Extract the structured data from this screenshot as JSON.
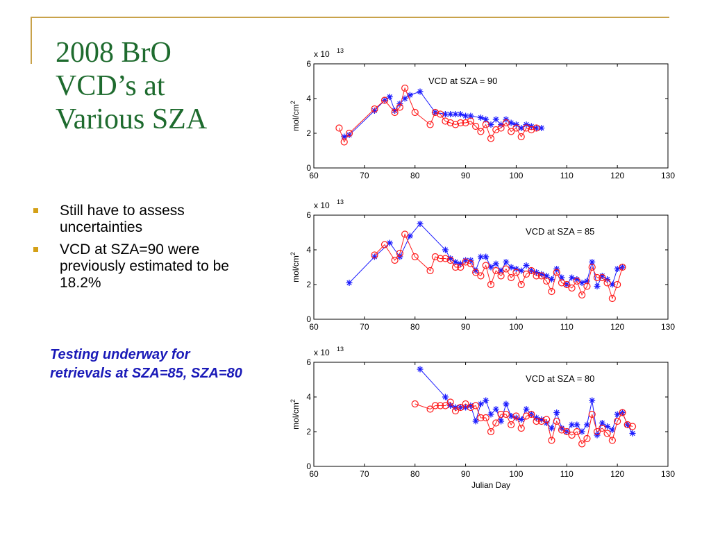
{
  "slide": {
    "title_lines": [
      "2008 BrO",
      "VCD’s at",
      "Various SZA"
    ],
    "bullets": [
      "Still have to assess uncertainties",
      "VCD at SZA=90 were previously estimated to be 18.2%"
    ],
    "note": "Testing underway for retrievals at SZA=85, SZA=80"
  },
  "colors": {
    "accent": "#c8a24a",
    "title": "#1e6b2e",
    "bullet": "#d4a017",
    "note": "#1a1ab8",
    "series_blue": "#1a1aff",
    "series_red": "#ff1a1a"
  },
  "chart_data": [
    {
      "type": "line",
      "title": "VCD at SZA = 90",
      "xlabel": "",
      "ylabel": "mol/cm",
      "ylabel_sup": "2",
      "exponent_label": "x 10",
      "exponent_sup": "13",
      "xlim": [
        60,
        130
      ],
      "ylim": [
        0,
        6
      ],
      "xticks": [
        60,
        70,
        80,
        90,
        100,
        110,
        120,
        130
      ],
      "yticks": [
        0,
        2,
        4,
        6
      ],
      "series": [
        {
          "marker": "star",
          "color": "#1a1aff",
          "x": [
            66,
            67,
            72,
            74,
            75,
            76,
            77,
            78,
            79,
            81,
            84,
            86,
            87,
            88,
            89,
            90,
            91,
            93,
            94,
            95,
            96,
            97,
            98,
            99,
            100,
            101,
            102,
            103,
            104,
            105
          ],
          "y": [
            1.8,
            1.9,
            3.3,
            3.9,
            4.1,
            3.3,
            3.7,
            4.0,
            4.2,
            4.4,
            3.2,
            3.1,
            3.1,
            3.1,
            3.1,
            3.0,
            3.0,
            2.9,
            2.8,
            2.5,
            2.8,
            2.5,
            2.8,
            2.6,
            2.5,
            2.3,
            2.5,
            2.4,
            2.3,
            2.3
          ]
        },
        {
          "marker": "circle",
          "color": "#ff1a1a",
          "x": [
            65,
            66,
            67,
            72,
            74,
            76,
            77,
            78,
            80,
            83,
            84,
            85,
            86,
            87,
            88,
            89,
            90,
            91,
            92,
            93,
            94,
            95,
            96,
            97,
            98,
            99,
            100,
            101,
            102,
            103,
            104
          ],
          "y": [
            2.3,
            1.5,
            2.0,
            3.4,
            3.9,
            3.2,
            3.5,
            4.6,
            3.2,
            2.5,
            3.2,
            3.1,
            2.7,
            2.6,
            2.5,
            2.6,
            2.6,
            2.7,
            2.4,
            2.1,
            2.5,
            1.7,
            2.2,
            2.3,
            2.6,
            2.1,
            2.3,
            1.8,
            2.3,
            2.2,
            2.3
          ]
        }
      ]
    },
    {
      "type": "line",
      "title": "VCD at SZA = 85",
      "xlabel": "",
      "ylabel": "mol/cm",
      "ylabel_sup": "2",
      "exponent_label": "x 10",
      "exponent_sup": "13",
      "xlim": [
        60,
        130
      ],
      "ylim": [
        0,
        6
      ],
      "xticks": [
        60,
        70,
        80,
        90,
        100,
        110,
        120,
        130
      ],
      "yticks": [
        0,
        2,
        4,
        6
      ],
      "series": [
        {
          "marker": "star",
          "color": "#1a1aff",
          "x": [
            67,
            72,
            75,
            77,
            79,
            81,
            86,
            87,
            88,
            89,
            90,
            91,
            92,
            93,
            94,
            95,
            96,
            97,
            98,
            99,
            100,
            101,
            102,
            103,
            104,
            105,
            106,
            107,
            108,
            109,
            110,
            111,
            112,
            113,
            114,
            115,
            116,
            117,
            118,
            119,
            120,
            121
          ],
          "y": [
            2.1,
            3.6,
            4.4,
            3.6,
            4.8,
            5.5,
            4.0,
            3.5,
            3.3,
            3.2,
            3.4,
            3.4,
            2.8,
            3.6,
            3.6,
            3.0,
            3.2,
            2.8,
            3.3,
            3.0,
            2.9,
            2.8,
            3.1,
            2.8,
            2.7,
            2.6,
            2.5,
            2.3,
            2.9,
            2.4,
            2.0,
            2.4,
            2.3,
            2.1,
            2.2,
            3.3,
            1.9,
            2.5,
            2.3,
            2.0,
            2.9,
            3.0
          ]
        },
        {
          "marker": "circle",
          "color": "#ff1a1a",
          "x": [
            72,
            74,
            76,
            77,
            78,
            80,
            83,
            84,
            85,
            86,
            87,
            88,
            89,
            90,
            91,
            92,
            93,
            94,
            95,
            96,
            97,
            98,
            99,
            100,
            101,
            102,
            103,
            104,
            105,
            106,
            107,
            108,
            109,
            110,
            111,
            112,
            113,
            114,
            115,
            116,
            117,
            118,
            119,
            120,
            121
          ],
          "y": [
            3.7,
            4.3,
            3.4,
            3.8,
            4.9,
            3.6,
            2.8,
            3.6,
            3.5,
            3.5,
            3.4,
            3.0,
            3.0,
            3.3,
            3.2,
            2.7,
            2.5,
            3.1,
            2.0,
            2.8,
            2.5,
            2.9,
            2.4,
            2.7,
            2.0,
            2.6,
            2.8,
            2.5,
            2.5,
            2.2,
            1.6,
            2.7,
            2.1,
            2.0,
            1.8,
            2.2,
            1.4,
            1.9,
            3.0,
            2.4,
            2.4,
            2.1,
            1.2,
            2.0,
            3.0
          ]
        }
      ]
    },
    {
      "type": "line",
      "title": "VCD at SZA = 80",
      "xlabel": "Julian Day",
      "ylabel": "mol/cm",
      "ylabel_sup": "2",
      "exponent_label": "x 10",
      "exponent_sup": "13",
      "xlim": [
        60,
        130
      ],
      "ylim": [
        0,
        6
      ],
      "xticks": [
        60,
        70,
        80,
        90,
        100,
        110,
        120,
        130
      ],
      "yticks": [
        0,
        2,
        4,
        6
      ],
      "series": [
        {
          "marker": "star",
          "color": "#1a1aff",
          "x": [
            81,
            86,
            87,
            88,
            89,
            90,
            91,
            92,
            93,
            94,
            95,
            96,
            97,
            98,
            99,
            100,
            101,
            102,
            103,
            104,
            105,
            106,
            107,
            108,
            109,
            110,
            111,
            112,
            113,
            114,
            115,
            116,
            117,
            118,
            119,
            120,
            121,
            122,
            123
          ],
          "y": [
            5.6,
            4.0,
            3.5,
            3.4,
            3.4,
            3.4,
            3.5,
            2.6,
            3.6,
            3.8,
            3.0,
            3.3,
            2.6,
            3.6,
            2.9,
            2.8,
            2.7,
            3.3,
            3.0,
            2.8,
            2.7,
            2.5,
            2.2,
            3.1,
            2.2,
            2.0,
            2.4,
            2.4,
            2.0,
            2.4,
            3.8,
            1.8,
            2.5,
            2.3,
            2.1,
            3.0,
            3.1,
            2.4,
            1.9
          ]
        },
        {
          "marker": "circle",
          "color": "#ff1a1a",
          "x": [
            80,
            83,
            84,
            85,
            86,
            87,
            88,
            89,
            90,
            91,
            92,
            93,
            94,
            95,
            96,
            97,
            98,
            99,
            100,
            101,
            102,
            103,
            104,
            105,
            106,
            107,
            108,
            109,
            110,
            111,
            112,
            113,
            114,
            115,
            116,
            117,
            118,
            119,
            120,
            121,
            122,
            123
          ],
          "y": [
            3.6,
            3.3,
            3.5,
            3.5,
            3.5,
            3.7,
            3.2,
            3.4,
            3.6,
            3.4,
            3.5,
            2.8,
            2.8,
            2.0,
            2.5,
            3.0,
            3.0,
            2.4,
            2.9,
            2.2,
            2.9,
            3.0,
            2.6,
            2.6,
            2.7,
            1.5,
            2.6,
            2.1,
            2.0,
            1.8,
            2.0,
            1.3,
            1.6,
            3.0,
            2.0,
            2.2,
            1.9,
            1.5,
            2.6,
            3.1,
            2.4,
            2.3
          ]
        }
      ]
    }
  ]
}
